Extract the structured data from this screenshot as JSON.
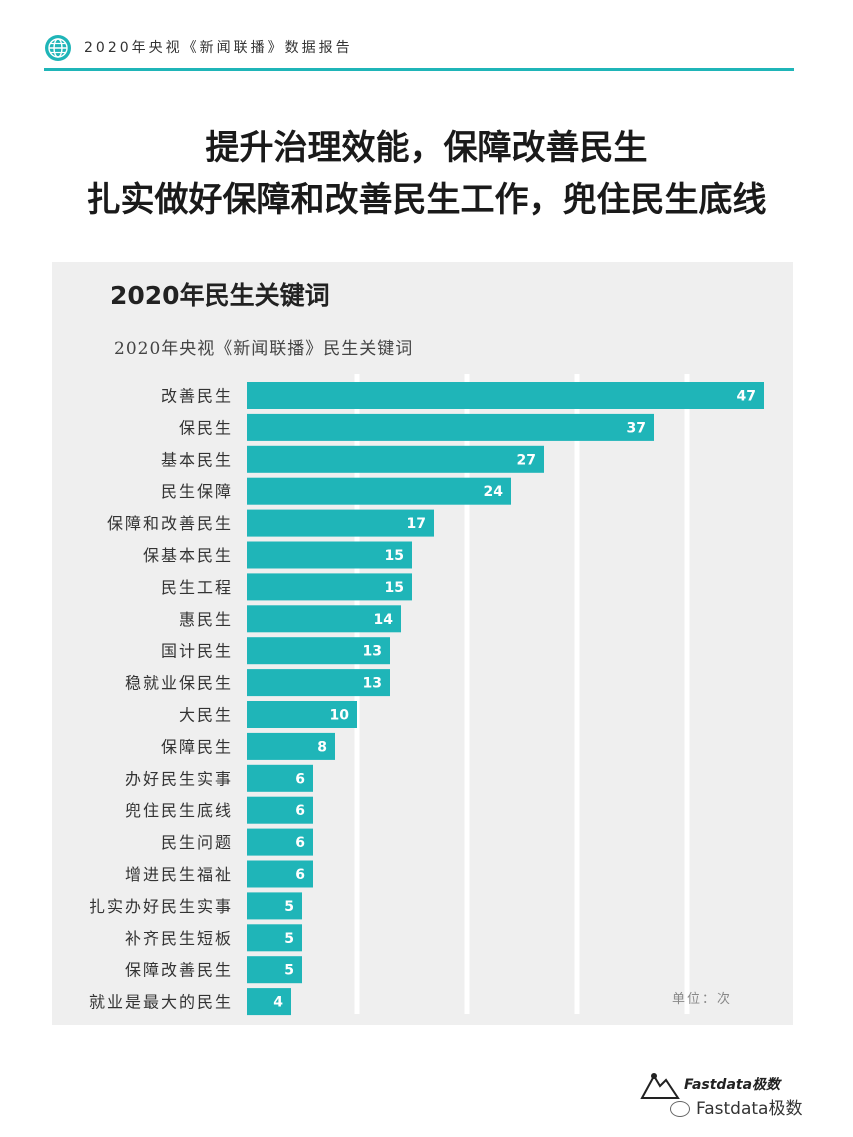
{
  "header": {
    "text": "2020年央视《新闻联播》数据报告",
    "icon": "globe-icon",
    "accent_color": "#1fb5b8"
  },
  "headline": {
    "line1": "提升治理效能，保障改善民生",
    "line2": "扎实做好保障和改善民生工作，兜住民生底线"
  },
  "chart_data": {
    "type": "bar",
    "orientation": "horizontal",
    "title": "2020年民生关键词",
    "subtitle": "2020年央视《新闻联播》民生关键词",
    "unit_label": "单位：次",
    "categories": [
      "改善民生",
      "保民生",
      "基本民生",
      "民生保障",
      "保障和改善民生",
      "保基本民生",
      "民生工程",
      "惠民生",
      "国计民生",
      "稳就业保民生",
      "大民生",
      "保障民生",
      "办好民生实事",
      "兜住民生底线",
      "民生问题",
      "增进民生福祉",
      "扎实办好民生实事",
      "补齐民生短板",
      "保障改善民生",
      "就业是最大的民生"
    ],
    "values": [
      47,
      37,
      27,
      24,
      17,
      15,
      15,
      14,
      13,
      13,
      10,
      8,
      6,
      6,
      6,
      6,
      5,
      5,
      5,
      4
    ],
    "xlim": [
      0,
      50
    ],
    "grid": true,
    "bar_color": "#1fb5b8",
    "legend": "none"
  },
  "footer": {
    "brand": "Fastdata极数",
    "wechat": "Fastdata极数"
  }
}
